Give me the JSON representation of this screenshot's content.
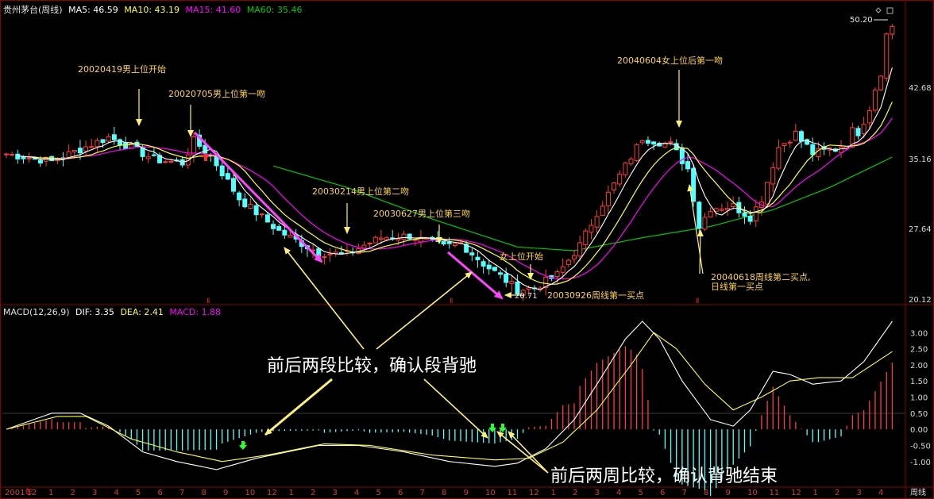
{
  "header": {
    "security": "贵州茅台(周线)",
    "ma5": "MA5: 46.59",
    "ma10": "MA10: 43.19",
    "ma15": "MA15: 41.60",
    "ma60": "MA60: 35.46"
  },
  "macd_header": {
    "name": "MACD(12,26,9)",
    "dif": "DIF: 3.35",
    "dea": "DEA: 2.41",
    "macd": "MACD: 1.88"
  },
  "colors": {
    "up": "#ff3c3c",
    "down": "#54ffff",
    "ma5": "#ffffff",
    "ma10": "#ffff3c",
    "ma15": "#ff00ff",
    "ma60": "#00c800",
    "annotation": "#ffd24a",
    "arrow": "#fff07a"
  },
  "price_axis": {
    "labels": [
      "50.20",
      "42.68",
      "35.16",
      "27.64",
      "20.12"
    ]
  },
  "macd_axis": {
    "labels": [
      "3.00",
      "2.50",
      "2.00",
      "1.50",
      "1.00",
      "0.50",
      "0.00",
      "-0.50",
      "-1.00"
    ]
  },
  "x_axis": {
    "labels": [
      "2001年",
      "12",
      "1",
      "2",
      "3",
      "4",
      "5",
      "6",
      "7",
      "8",
      "9",
      "10",
      "12",
      "1",
      "2",
      "3",
      "4",
      "5",
      "6",
      "7",
      "8",
      "9",
      "10",
      "11",
      "12",
      "1",
      "2",
      "3",
      "4",
      "5",
      "6",
      "7",
      "8",
      "9",
      "10",
      "11",
      "12",
      "1",
      "2",
      "3",
      "4"
    ],
    "period": "周线"
  },
  "annotations": {
    "a1": "20020419男上位开始",
    "a2": "20020705男上位第一吻",
    "a3": "20030214男上位第二吻",
    "a4": "20030627男上位第三吻",
    "a5": "女上位开始",
    "a6": "20030926周线第一买点",
    "a7": "20040604女上位后第一吻",
    "a8": "20040618周线第二买点,",
    "a9": "日线第一买点",
    "low_label": "20.71",
    "high_label": "50.20"
  },
  "callouts": {
    "c1": "前后两段比较，确认段背驰",
    "c2": "前后两周比较，确认背驰结束"
  },
  "chart_data": {
    "type": "candlestick+macd",
    "frequency": "weekly",
    "symbol": "贵州茅台",
    "price_ylim": [
      20.12,
      50.2
    ],
    "price_ticks": [
      20.12,
      27.64,
      35.16,
      42.68,
      50.2
    ],
    "low": 20.71,
    "high": 50.2,
    "price_path": [
      [
        0,
        35.8
      ],
      [
        8,
        35.0
      ],
      [
        18,
        37.6
      ],
      [
        22,
        36.5
      ],
      [
        26,
        35.2
      ],
      [
        31,
        34.8
      ],
      [
        33,
        37.2
      ],
      [
        36,
        35.6
      ],
      [
        41,
        31.0
      ],
      [
        48,
        27.5
      ],
      [
        55,
        25.2
      ],
      [
        60,
        25.0
      ],
      [
        63,
        26.0
      ],
      [
        66,
        26.8
      ],
      [
        71,
        27.0
      ],
      [
        77,
        25.8
      ],
      [
        80,
        26.2
      ],
      [
        84,
        24.0
      ],
      [
        88,
        22.2
      ],
      [
        90,
        21.2
      ],
      [
        93,
        21.4
      ],
      [
        97,
        22.8
      ],
      [
        101,
        26.0
      ],
      [
        104,
        29.5
      ],
      [
        108,
        33.5
      ],
      [
        112,
        37.5
      ],
      [
        117,
        36.8
      ],
      [
        120,
        34.2
      ],
      [
        122,
        28.0
      ],
      [
        124,
        30.0
      ],
      [
        128,
        30.2
      ],
      [
        131,
        29.0
      ],
      [
        133,
        31.0
      ],
      [
        136,
        36.5
      ],
      [
        139,
        38.0
      ],
      [
        141,
        36.4
      ],
      [
        143,
        35.6
      ],
      [
        147,
        36.8
      ],
      [
        150,
        38.5
      ],
      [
        152,
        41.0
      ],
      [
        154,
        45.0
      ],
      [
        155,
        48.5
      ],
      [
        156,
        49.6
      ]
    ],
    "ma60_path": [
      [
        47,
        34.5
      ],
      [
        60,
        32.2
      ],
      [
        75,
        28.8
      ],
      [
        90,
        25.8
      ],
      [
        100,
        25.4
      ],
      [
        112,
        26.8
      ],
      [
        124,
        28.0
      ],
      [
        135,
        29.8
      ],
      [
        145,
        32.2
      ],
      [
        156,
        35.46
      ]
    ],
    "macd_ylim": [
      -1.4,
      3.4
    ],
    "macd_ticks": [
      3.0,
      2.5,
      2.0,
      1.5,
      1.0,
      0.5,
      0.0,
      -0.5,
      -1.0
    ],
    "dif_path": [
      [
        0,
        0.0
      ],
      [
        8,
        0.5
      ],
      [
        13,
        0.5
      ],
      [
        18,
        0.1
      ],
      [
        24,
        -0.7
      ],
      [
        30,
        -1.0
      ],
      [
        37,
        -1.25
      ],
      [
        44,
        -0.9
      ],
      [
        55,
        -0.5
      ],
      [
        62,
        -0.5
      ],
      [
        70,
        -0.7
      ],
      [
        78,
        -1.0
      ],
      [
        86,
        -1.15
      ],
      [
        90,
        -1.05
      ],
      [
        95,
        -0.6
      ],
      [
        100,
        0.3
      ],
      [
        104,
        1.4
      ],
      [
        109,
        2.8
      ],
      [
        112,
        3.35
      ],
      [
        115,
        2.8
      ],
      [
        119,
        1.5
      ],
      [
        124,
        0.3
      ],
      [
        128,
        0.1
      ],
      [
        131,
        0.6
      ],
      [
        135,
        1.8
      ],
      [
        138,
        1.7
      ],
      [
        142,
        1.4
      ],
      [
        147,
        1.5
      ],
      [
        151,
        2.1
      ],
      [
        156,
        3.35
      ]
    ],
    "dea_path": [
      [
        0,
        0.0
      ],
      [
        9,
        0.4
      ],
      [
        14,
        0.4
      ],
      [
        22,
        -0.3
      ],
      [
        30,
        -0.7
      ],
      [
        38,
        -1.0
      ],
      [
        46,
        -0.8
      ],
      [
        56,
        -0.45
      ],
      [
        64,
        -0.5
      ],
      [
        75,
        -0.8
      ],
      [
        86,
        -0.95
      ],
      [
        92,
        -0.9
      ],
      [
        98,
        -0.4
      ],
      [
        104,
        0.6
      ],
      [
        110,
        2.0
      ],
      [
        114,
        3.0
      ],
      [
        118,
        2.5
      ],
      [
        123,
        1.4
      ],
      [
        128,
        0.6
      ],
      [
        133,
        1.0
      ],
      [
        138,
        1.5
      ],
      [
        143,
        1.6
      ],
      [
        149,
        1.6
      ],
      [
        156,
        2.41
      ]
    ],
    "series": [
      {
        "name": "MA5",
        "value": 46.59
      },
      {
        "name": "MA10",
        "value": 43.19
      },
      {
        "name": "MA15",
        "value": 41.6
      },
      {
        "name": "MA60",
        "value": 35.46
      },
      {
        "name": "DIF",
        "value": 3.35
      },
      {
        "name": "DEA",
        "value": 2.41
      },
      {
        "name": "MACD",
        "value": 1.88
      }
    ]
  }
}
